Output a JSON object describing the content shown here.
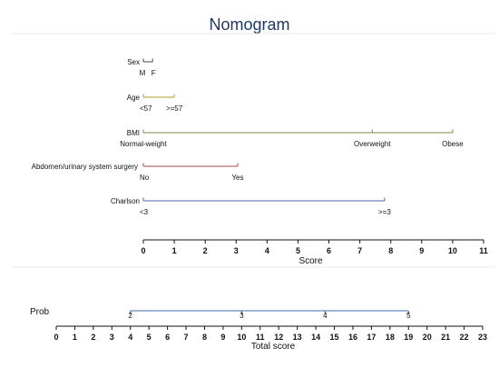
{
  "chart_data": {
    "type": "nomogram",
    "title": "Nomogram",
    "variables": [
      {
        "name": "Sex",
        "points_max": 0.3,
        "levels": [
          {
            "label": "M",
            "points": 0
          },
          {
            "label": "F",
            "points": 0.3
          }
        ]
      },
      {
        "name": "Age",
        "points_max": 1,
        "levels": [
          {
            "label": "<57",
            "points": 0
          },
          {
            "label": ">=57",
            "points": 1
          }
        ]
      },
      {
        "name": "BMI",
        "points_max": 10,
        "levels": [
          {
            "label": "Normal-weight",
            "points": 0
          },
          {
            "label": "Overweight",
            "points": 7.4
          },
          {
            "label": "Obese",
            "points": 10
          }
        ]
      },
      {
        "name": "Abdomen/urinary system surgery",
        "points_max": 3.05,
        "levels": [
          {
            "label": "No",
            "points": 0
          },
          {
            "label": "Yes",
            "points": 3.05
          }
        ]
      },
      {
        "name": "Charlson",
        "points_max": 7.8,
        "levels": [
          {
            "label": "<3",
            "points": 0
          },
          {
            "label": ">=3",
            "points": 7.8
          }
        ]
      }
    ],
    "score_axis": {
      "label": "Score",
      "min": 0,
      "max": 11,
      "ticks": [
        0,
        1,
        2,
        3,
        4,
        5,
        6,
        7,
        8,
        9,
        10,
        11
      ]
    },
    "total_axis": {
      "label": "Total score",
      "min": 0,
      "max": 23,
      "ticks": [
        0,
        1,
        2,
        3,
        4,
        5,
        6,
        7,
        8,
        9,
        10,
        11,
        12,
        13,
        14,
        15,
        16,
        17,
        18,
        19,
        20,
        21,
        22,
        23
      ]
    },
    "prob_axis": {
      "label": "Prob",
      "range": [
        4,
        19
      ],
      "ticks": [
        {
          "label": "2",
          "total": 4
        },
        {
          "label": "3",
          "total": 10
        },
        {
          "label": "4",
          "total": 14.5
        },
        {
          "label": "5",
          "total": 19
        }
      ]
    },
    "colors": {
      "Sex": "#4a4a4a",
      "Age": "#b89b2c",
      "BMI": "#7a8a4a",
      "Abdomen/urinary system surgery": "#a84848",
      "Charlson": "#4a6aa8",
      "Prob": "#4a6aa8"
    }
  }
}
